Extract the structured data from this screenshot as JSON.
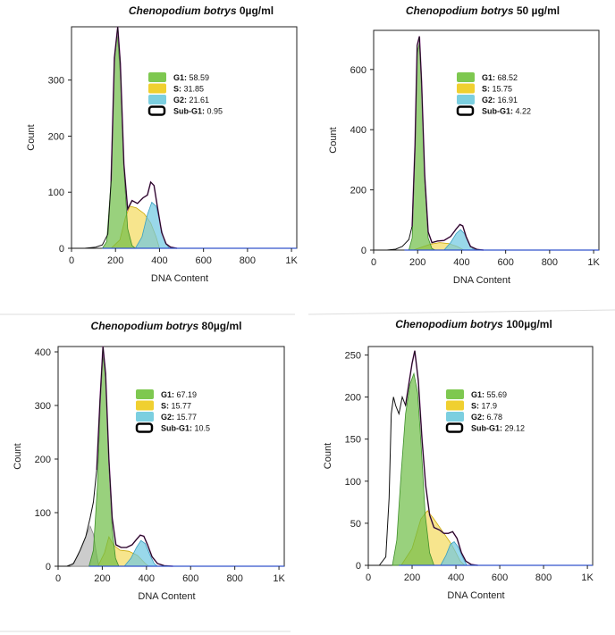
{
  "chart_data": [
    {
      "type": "histogram",
      "title_italic": "Chenopodium botrys",
      "title_dose": "0µg/ml",
      "xlabel": "DNA Content",
      "ylabel": "Count",
      "xlim": [
        0,
        1024
      ],
      "ylim": [
        0,
        395
      ],
      "x_ticks": [
        0,
        200,
        400,
        600,
        800,
        1000
      ],
      "x_tick_labels": [
        "0",
        "200",
        "400",
        "600",
        "800",
        "1K"
      ],
      "y_ticks": [
        0,
        100,
        200,
        300
      ],
      "legend": [
        {
          "name": "G1",
          "value": "58.59",
          "color": "#7ec850"
        },
        {
          "name": "S",
          "value": "31.85",
          "color": "#f0d030"
        },
        {
          "name": "G2",
          "value": "21.61",
          "color": "#7ccfe0"
        },
        {
          "name": "Sub-G1",
          "value": "0.95",
          "color": "#ffffff"
        }
      ],
      "curve": [
        [
          0,
          0
        ],
        [
          60,
          0
        ],
        [
          110,
          2
        ],
        [
          140,
          6
        ],
        [
          165,
          25
        ],
        [
          180,
          120
        ],
        [
          195,
          340
        ],
        [
          210,
          395
        ],
        [
          222,
          330
        ],
        [
          238,
          150
        ],
        [
          255,
          70
        ],
        [
          275,
          85
        ],
        [
          300,
          80
        ],
        [
          325,
          90
        ],
        [
          345,
          95
        ],
        [
          360,
          118
        ],
        [
          375,
          112
        ],
        [
          392,
          70
        ],
        [
          410,
          28
        ],
        [
          430,
          8
        ],
        [
          450,
          2
        ],
        [
          480,
          0
        ],
        [
          1024,
          0
        ]
      ],
      "g1": [
        [
          140,
          0
        ],
        [
          160,
          12
        ],
        [
          178,
          110
        ],
        [
          195,
          330
        ],
        [
          208,
          385
        ],
        [
          222,
          310
        ],
        [
          238,
          140
        ],
        [
          255,
          35
        ],
        [
          275,
          5
        ],
        [
          290,
          0
        ]
      ],
      "s": [
        [
          180,
          0
        ],
        [
          220,
          15
        ],
        [
          245,
          55
        ],
        [
          265,
          75
        ],
        [
          295,
          72
        ],
        [
          330,
          62
        ],
        [
          360,
          45
        ],
        [
          385,
          20
        ],
        [
          400,
          0
        ]
      ],
      "g2": [
        [
          290,
          0
        ],
        [
          320,
          20
        ],
        [
          345,
          60
        ],
        [
          365,
          82
        ],
        [
          385,
          75
        ],
        [
          405,
          40
        ],
        [
          425,
          10
        ],
        [
          445,
          0
        ]
      ],
      "subg1": []
    },
    {
      "type": "histogram",
      "title_italic": "Chenopodium botrys",
      "title_dose": "50 µg/ml",
      "xlabel": "DNA Content",
      "ylabel": "Count",
      "xlim": [
        0,
        1024
      ],
      "ylim": [
        0,
        730
      ],
      "x_ticks": [
        0,
        200,
        400,
        600,
        800,
        1000
      ],
      "x_tick_labels": [
        "0",
        "200",
        "400",
        "600",
        "800",
        "1K"
      ],
      "y_ticks": [
        0,
        200,
        400,
        600
      ],
      "legend": [
        {
          "name": "G1",
          "value": "68.52",
          "color": "#7ec850"
        },
        {
          "name": "S",
          "value": "15.75",
          "color": "#f0d030"
        },
        {
          "name": "G2",
          "value": "16.91",
          "color": "#7ccfe0"
        },
        {
          "name": "Sub-G1",
          "value": "4.22",
          "color": "#ffffff"
        }
      ],
      "curve": [
        [
          0,
          0
        ],
        [
          60,
          0
        ],
        [
          100,
          3
        ],
        [
          130,
          12
        ],
        [
          160,
          35
        ],
        [
          175,
          80
        ],
        [
          188,
          350
        ],
        [
          198,
          680
        ],
        [
          208,
          710
        ],
        [
          218,
          560
        ],
        [
          232,
          250
        ],
        [
          248,
          60
        ],
        [
          265,
          25
        ],
        [
          290,
          30
        ],
        [
          320,
          32
        ],
        [
          350,
          45
        ],
        [
          375,
          70
        ],
        [
          392,
          85
        ],
        [
          405,
          80
        ],
        [
          420,
          45
        ],
        [
          440,
          12
        ],
        [
          470,
          2
        ],
        [
          500,
          0
        ],
        [
          1024,
          0
        ]
      ],
      "g1": [
        [
          160,
          0
        ],
        [
          175,
          40
        ],
        [
          188,
          330
        ],
        [
          198,
          650
        ],
        [
          208,
          690
        ],
        [
          218,
          540
        ],
        [
          232,
          230
        ],
        [
          248,
          40
        ],
        [
          265,
          5
        ],
        [
          280,
          0
        ]
      ],
      "s": [
        [
          180,
          0
        ],
        [
          220,
          10
        ],
        [
          260,
          20
        ],
        [
          300,
          25
        ],
        [
          340,
          22
        ],
        [
          380,
          12
        ],
        [
          410,
          0
        ]
      ],
      "g2": [
        [
          320,
          0
        ],
        [
          350,
          25
        ],
        [
          375,
          55
        ],
        [
          395,
          68
        ],
        [
          412,
          55
        ],
        [
          430,
          25
        ],
        [
          450,
          5
        ],
        [
          470,
          0
        ]
      ],
      "subg1": []
    },
    {
      "type": "histogram",
      "title_italic": "Chenopodium botrys",
      "title_dose": "80µg/ml",
      "xlabel": "DNA Content",
      "ylabel": "Count",
      "xlim": [
        0,
        1024
      ],
      "ylim": [
        0,
        410
      ],
      "x_ticks": [
        0,
        200,
        400,
        600,
        800,
        1000
      ],
      "x_tick_labels": [
        "0",
        "200",
        "400",
        "600",
        "800",
        "1K"
      ],
      "y_ticks": [
        0,
        100,
        200,
        300,
        400
      ],
      "legend": [
        {
          "name": "G1",
          "value": "67.19",
          "color": "#7ec850"
        },
        {
          "name": "S",
          "value": "15.77",
          "color": "#f0d030"
        },
        {
          "name": "G2",
          "value": "15.77",
          "color": "#7ccfe0"
        },
        {
          "name": "Sub-G1",
          "value": "10.5",
          "color": "#ffffff"
        }
      ],
      "curve": [
        [
          0,
          0
        ],
        [
          40,
          0
        ],
        [
          70,
          5
        ],
        [
          100,
          30
        ],
        [
          125,
          55
        ],
        [
          145,
          90
        ],
        [
          160,
          120
        ],
        [
          175,
          180
        ],
        [
          190,
          310
        ],
        [
          203,
          410
        ],
        [
          215,
          360
        ],
        [
          230,
          200
        ],
        [
          245,
          90
        ],
        [
          262,
          40
        ],
        [
          285,
          35
        ],
        [
          310,
          35
        ],
        [
          335,
          40
        ],
        [
          355,
          50
        ],
        [
          372,
          58
        ],
        [
          388,
          56
        ],
        [
          405,
          40
        ],
        [
          425,
          18
        ],
        [
          450,
          5
        ],
        [
          480,
          1
        ],
        [
          520,
          0
        ],
        [
          1024,
          0
        ]
      ],
      "g1": [
        [
          140,
          0
        ],
        [
          160,
          30
        ],
        [
          178,
          150
        ],
        [
          192,
          310
        ],
        [
          203,
          395
        ],
        [
          215,
          350
        ],
        [
          230,
          190
        ],
        [
          245,
          70
        ],
        [
          260,
          15
        ],
        [
          275,
          0
        ]
      ],
      "s": [
        [
          180,
          0
        ],
        [
          210,
          25
        ],
        [
          230,
          55
        ],
        [
          250,
          40
        ],
        [
          280,
          30
        ],
        [
          320,
          28
        ],
        [
          360,
          20
        ],
        [
          395,
          5
        ],
        [
          410,
          0
        ]
      ],
      "g2": [
        [
          300,
          0
        ],
        [
          330,
          15
        ],
        [
          355,
          35
        ],
        [
          375,
          48
        ],
        [
          395,
          42
        ],
        [
          415,
          22
        ],
        [
          435,
          5
        ],
        [
          450,
          0
        ]
      ],
      "subg1": [
        [
          60,
          0
        ],
        [
          90,
          20
        ],
        [
          120,
          50
        ],
        [
          145,
          75
        ],
        [
          160,
          60
        ],
        [
          175,
          20
        ],
        [
          185,
          0
        ]
      ]
    },
    {
      "type": "histogram",
      "title_italic": "Chenopodium botrys",
      "title_dose": "100µg/ml",
      "xlabel": "DNA Content",
      "ylabel": "Count",
      "xlim": [
        0,
        1024
      ],
      "ylim": [
        0,
        260
      ],
      "x_ticks": [
        0,
        200,
        400,
        600,
        800,
        1000
      ],
      "x_tick_labels": [
        "0",
        "200",
        "400",
        "600",
        "800",
        "1K"
      ],
      "y_ticks": [
        0,
        50,
        100,
        150,
        200,
        250
      ],
      "legend": [
        {
          "name": "G1",
          "value": "55.69",
          "color": "#7ec850"
        },
        {
          "name": "S",
          "value": "17.9",
          "color": "#f0d030"
        },
        {
          "name": "G2",
          "value": "6.78",
          "color": "#7ccfe0"
        },
        {
          "name": "Sub-G1",
          "value": "29.12",
          "color": "#ffffff"
        }
      ],
      "curve": [
        [
          0,
          0
        ],
        [
          50,
          0
        ],
        [
          80,
          10
        ],
        [
          95,
          80
        ],
        [
          105,
          180
        ],
        [
          115,
          200
        ],
        [
          125,
          190
        ],
        [
          140,
          180
        ],
        [
          155,
          200
        ],
        [
          170,
          190
        ],
        [
          185,
          215
        ],
        [
          200,
          240
        ],
        [
          212,
          255
        ],
        [
          228,
          220
        ],
        [
          245,
          150
        ],
        [
          262,
          95
        ],
        [
          280,
          60
        ],
        [
          300,
          45
        ],
        [
          325,
          42
        ],
        [
          345,
          38
        ],
        [
          365,
          38
        ],
        [
          385,
          40
        ],
        [
          405,
          32
        ],
        [
          425,
          15
        ],
        [
          445,
          5
        ],
        [
          470,
          1
        ],
        [
          500,
          0
        ],
        [
          1024,
          0
        ]
      ],
      "g1": [
        [
          110,
          0
        ],
        [
          130,
          30
        ],
        [
          150,
          110
        ],
        [
          170,
          180
        ],
        [
          190,
          215
        ],
        [
          208,
          228
        ],
        [
          225,
          205
        ],
        [
          242,
          140
        ],
        [
          260,
          60
        ],
        [
          280,
          15
        ],
        [
          300,
          0
        ]
      ],
      "s": [
        [
          150,
          0
        ],
        [
          200,
          20
        ],
        [
          240,
          55
        ],
        [
          270,
          65
        ],
        [
          300,
          55
        ],
        [
          340,
          40
        ],
        [
          380,
          25
        ],
        [
          420,
          5
        ],
        [
          440,
          0
        ]
      ],
      "g2": [
        [
          330,
          0
        ],
        [
          355,
          12
        ],
        [
          375,
          25
        ],
        [
          392,
          28
        ],
        [
          410,
          22
        ],
        [
          430,
          10
        ],
        [
          450,
          0
        ]
      ],
      "subg1": []
    }
  ]
}
